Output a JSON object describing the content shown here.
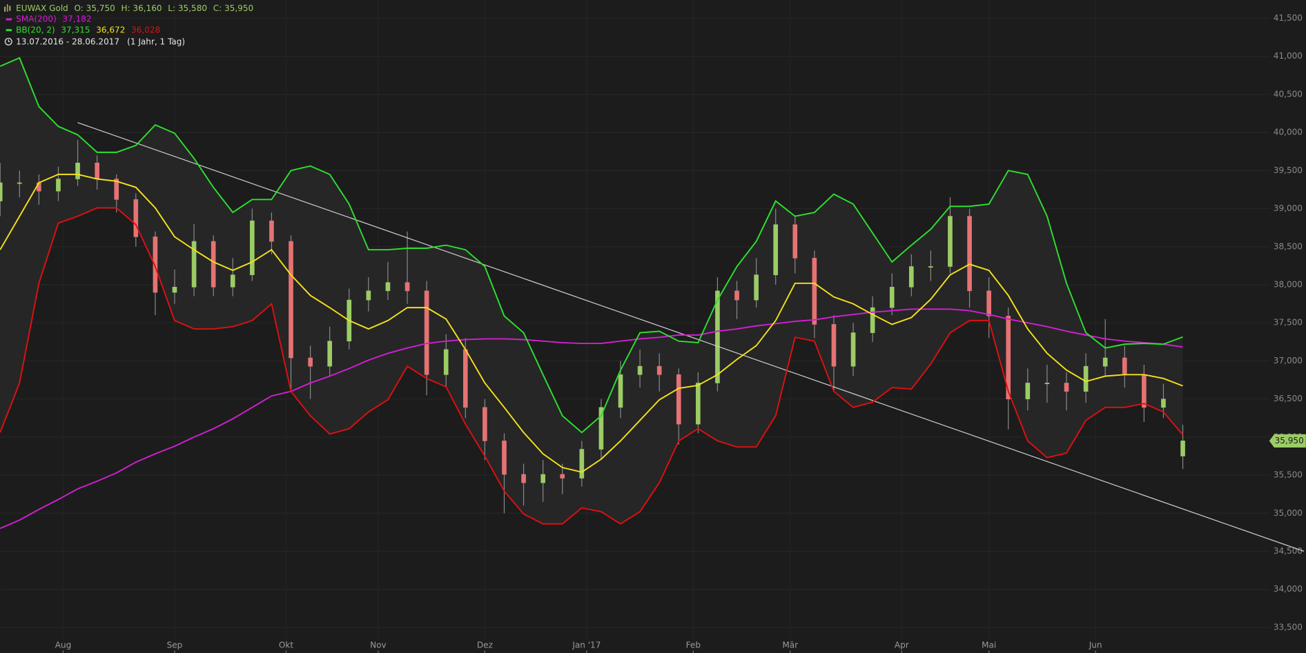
{
  "chart_data": {
    "type": "candlestick",
    "title": "EUWAX Gold",
    "header_values": [
      "O: 35,750",
      "H: 36,160",
      "L: 35,580",
      "C: 35,950"
    ],
    "period": "13.07.2016 - 28.06.2017",
    "period_note": "(1 Jahr, 1 Tag)",
    "last_price_label": "35,950",
    "up_color": "#9ccc65",
    "down_color": "#e57373",
    "grid": true,
    "xlim": [
      0,
      262
    ],
    "ylim": [
      33350,
      41740
    ],
    "xticks": [
      {
        "value": 13,
        "label": "Aug"
      },
      {
        "value": 36,
        "label": "Sep"
      },
      {
        "value": 59,
        "label": "Okt"
      },
      {
        "value": 78,
        "label": "Nov"
      },
      {
        "value": 100,
        "label": "Dez"
      },
      {
        "value": 121,
        "label": "Jan '17"
      },
      {
        "value": 143,
        "label": "Feb"
      },
      {
        "value": 163,
        "label": "Mär"
      },
      {
        "value": 186,
        "label": "Apr"
      },
      {
        "value": 204,
        "label": "Mai"
      },
      {
        "value": 226,
        "label": "Jun"
      }
    ],
    "yticks": [
      {
        "value": 33500,
        "label": "33,500"
      },
      {
        "value": 34000,
        "label": "34,000"
      },
      {
        "value": 34500,
        "label": "34,500"
      },
      {
        "value": 35000,
        "label": "35,000"
      },
      {
        "value": 35500,
        "label": "35,500"
      },
      {
        "value": 36000,
        "label": "36,000"
      },
      {
        "value": 36500,
        "label": "36,500"
      },
      {
        "value": 37000,
        "label": "37,000"
      },
      {
        "value": 37500,
        "label": "37,500"
      },
      {
        "value": 38000,
        "label": "38,000"
      },
      {
        "value": 38500,
        "label": "38,500"
      },
      {
        "value": 39000,
        "label": "39,000"
      },
      {
        "value": 39500,
        "label": "39,500"
      },
      {
        "value": 40000,
        "label": "40,000"
      },
      {
        "value": 40500,
        "label": "40,500"
      },
      {
        "value": 41000,
        "label": "41,000"
      },
      {
        "value": 41500,
        "label": "41,500"
      }
    ],
    "x": [
      0,
      4,
      8,
      12,
      16,
      20,
      24,
      28,
      32,
      36,
      40,
      44,
      48,
      52,
      56,
      60,
      64,
      68,
      72,
      76,
      80,
      84,
      88,
      92,
      96,
      100,
      104,
      108,
      112,
      116,
      120,
      124,
      128,
      132,
      136,
      140,
      144,
      148,
      152,
      156,
      160,
      164,
      168,
      172,
      176,
      180,
      184,
      188,
      192,
      196,
      200,
      204,
      208,
      212,
      216,
      220,
      224,
      228,
      232,
      236,
      240,
      244
    ],
    "open": [
      39100,
      39340,
      39340,
      39230,
      39390,
      39600,
      39390,
      39120,
      38630,
      37900,
      37970,
      38570,
      37970,
      38130,
      38840,
      38570,
      37040,
      36930,
      37260,
      37800,
      37920,
      38030,
      37920,
      36820,
      37150,
      36390,
      35950,
      35510,
      35400,
      35510,
      35460,
      35840,
      36390,
      36820,
      36930,
      36820,
      36170,
      36710,
      37920,
      37800,
      38130,
      38790,
      38350,
      37480,
      36930,
      37370,
      37700,
      37970,
      38240,
      38240,
      38900,
      37920,
      37590,
      36500,
      36710,
      36710,
      36600,
      36930,
      37040,
      36820,
      36390,
      35750
    ],
    "high": [
      39600,
      39500,
      39450,
      39550,
      39900,
      39700,
      39450,
      39200,
      38700,
      38200,
      38800,
      38650,
      38350,
      39000,
      38950,
      38650,
      37200,
      37450,
      37950,
      38100,
      38300,
      38700,
      38050,
      37350,
      37300,
      36500,
      36050,
      35650,
      35700,
      35650,
      35950,
      36500,
      37000,
      37150,
      37100,
      36900,
      36850,
      38100,
      38050,
      38350,
      39000,
      38900,
      38450,
      37600,
      37500,
      37850,
      38150,
      38400,
      38450,
      39150,
      39000,
      38100,
      37700,
      36900,
      36950,
      36850,
      37100,
      37550,
      37200,
      36950,
      36700,
      36160
    ],
    "low": [
      38900,
      39150,
      39050,
      39100,
      39300,
      39250,
      38950,
      38500,
      37600,
      37750,
      37850,
      37850,
      37850,
      38050,
      38400,
      36600,
      36500,
      36800,
      37150,
      37650,
      37800,
      37750,
      36550,
      36650,
      36250,
      35700,
      35000,
      35100,
      35150,
      35250,
      35350,
      35700,
      36250,
      36650,
      36600,
      35900,
      36050,
      36600,
      37550,
      37700,
      38000,
      38150,
      37300,
      36600,
      36800,
      37250,
      37600,
      37850,
      38050,
      38150,
      37700,
      37300,
      36100,
      36350,
      36450,
      36350,
      36450,
      36800,
      36650,
      36200,
      36250,
      35580
    ],
    "close": [
      39340,
      39340,
      39230,
      39390,
      39600,
      39390,
      39120,
      38630,
      37900,
      37970,
      38570,
      37970,
      38130,
      38840,
      38570,
      37040,
      36930,
      37260,
      37800,
      37920,
      38030,
      37920,
      36820,
      37150,
      36390,
      35950,
      35510,
      35400,
      35510,
      35460,
      35840,
      36390,
      36820,
      36930,
      36820,
      36170,
      36710,
      37920,
      37800,
      38130,
      38790,
      38350,
      37480,
      36930,
      37370,
      37700,
      37970,
      38240,
      38240,
      38900,
      37920,
      37590,
      36500,
      36710,
      36710,
      36600,
      36930,
      37040,
      36820,
      36390,
      36500,
      35950
    ],
    "series": [
      {
        "name": "SMA(200)",
        "color": "#d21fd2",
        "value_label": "37,182",
        "values": [
          34800,
          34910,
          35050,
          35180,
          35320,
          35420,
          35530,
          35670,
          35780,
          35880,
          36000,
          36110,
          36240,
          36390,
          36540,
          36600,
          36710,
          36800,
          36900,
          37010,
          37100,
          37170,
          37230,
          37260,
          37280,
          37290,
          37290,
          37280,
          37260,
          37240,
          37230,
          37230,
          37260,
          37290,
          37310,
          37340,
          37340,
          37390,
          37420,
          37460,
          37490,
          37520,
          37540,
          37580,
          37610,
          37640,
          37660,
          37680,
          37680,
          37680,
          37660,
          37610,
          37550,
          37500,
          37450,
          37390,
          37340,
          37290,
          37260,
          37240,
          37220,
          37182
        ]
      }
    ],
    "bands": {
      "name": "BB(20, 2)",
      "upper": {
        "color": "#2ee02e",
        "value_label": "37,315",
        "values": [
          40870,
          40980,
          40340,
          40080,
          39970,
          39740,
          39740,
          39830,
          40100,
          39990,
          39660,
          39280,
          38950,
          39120,
          39120,
          39500,
          39560,
          39450,
          39060,
          38460,
          38460,
          38480,
          38480,
          38520,
          38460,
          38240,
          37590,
          37370,
          36820,
          36280,
          36060,
          36280,
          36880,
          37370,
          37390,
          37260,
          37240,
          37800,
          38240,
          38570,
          39100,
          38900,
          38950,
          39190,
          39060,
          38680,
          38300,
          38520,
          38730,
          39030,
          39030,
          39060,
          39500,
          39450,
          38900,
          38020,
          37370,
          37170,
          37220,
          37230,
          37220,
          37315
        ]
      },
      "middle": {
        "color": "#f5e11a",
        "value_label": "36,672",
        "values": [
          38460,
          38900,
          39340,
          39450,
          39450,
          39390,
          39360,
          39280,
          39010,
          38630,
          38460,
          38300,
          38190,
          38300,
          38460,
          38130,
          37860,
          37700,
          37530,
          37420,
          37530,
          37700,
          37700,
          37550,
          37150,
          36710,
          36390,
          36060,
          35780,
          35600,
          35540,
          35710,
          35950,
          36220,
          36490,
          36640,
          36680,
          36820,
          37020,
          37200,
          37530,
          38020,
          38020,
          37840,
          37750,
          37610,
          37480,
          37570,
          37810,
          38130,
          38270,
          38190,
          37860,
          37420,
          37100,
          36880,
          36730,
          36800,
          36820,
          36820,
          36770,
          36672
        ]
      },
      "lower": {
        "color": "#e01010",
        "value_label": "36,028",
        "values": [
          36060,
          36710,
          38020,
          38810,
          38900,
          39010,
          39010,
          38790,
          38240,
          37530,
          37420,
          37420,
          37450,
          37530,
          37750,
          36600,
          36280,
          36040,
          36110,
          36330,
          36490,
          36930,
          36770,
          36660,
          36170,
          35750,
          35290,
          34990,
          34860,
          34860,
          35070,
          35020,
          34860,
          35020,
          35400,
          35950,
          36110,
          35950,
          35870,
          35870,
          36280,
          37310,
          37260,
          36600,
          36390,
          36460,
          36650,
          36630,
          36960,
          37370,
          37530,
          37530,
          36600,
          35950,
          35730,
          35790,
          36220,
          36390,
          36390,
          36440,
          36330,
          36028
        ]
      }
    },
    "trendline": {
      "x": [
        16,
        269
      ],
      "values": [
        40130,
        34500
      ],
      "color": "#cfcfcf"
    }
  }
}
